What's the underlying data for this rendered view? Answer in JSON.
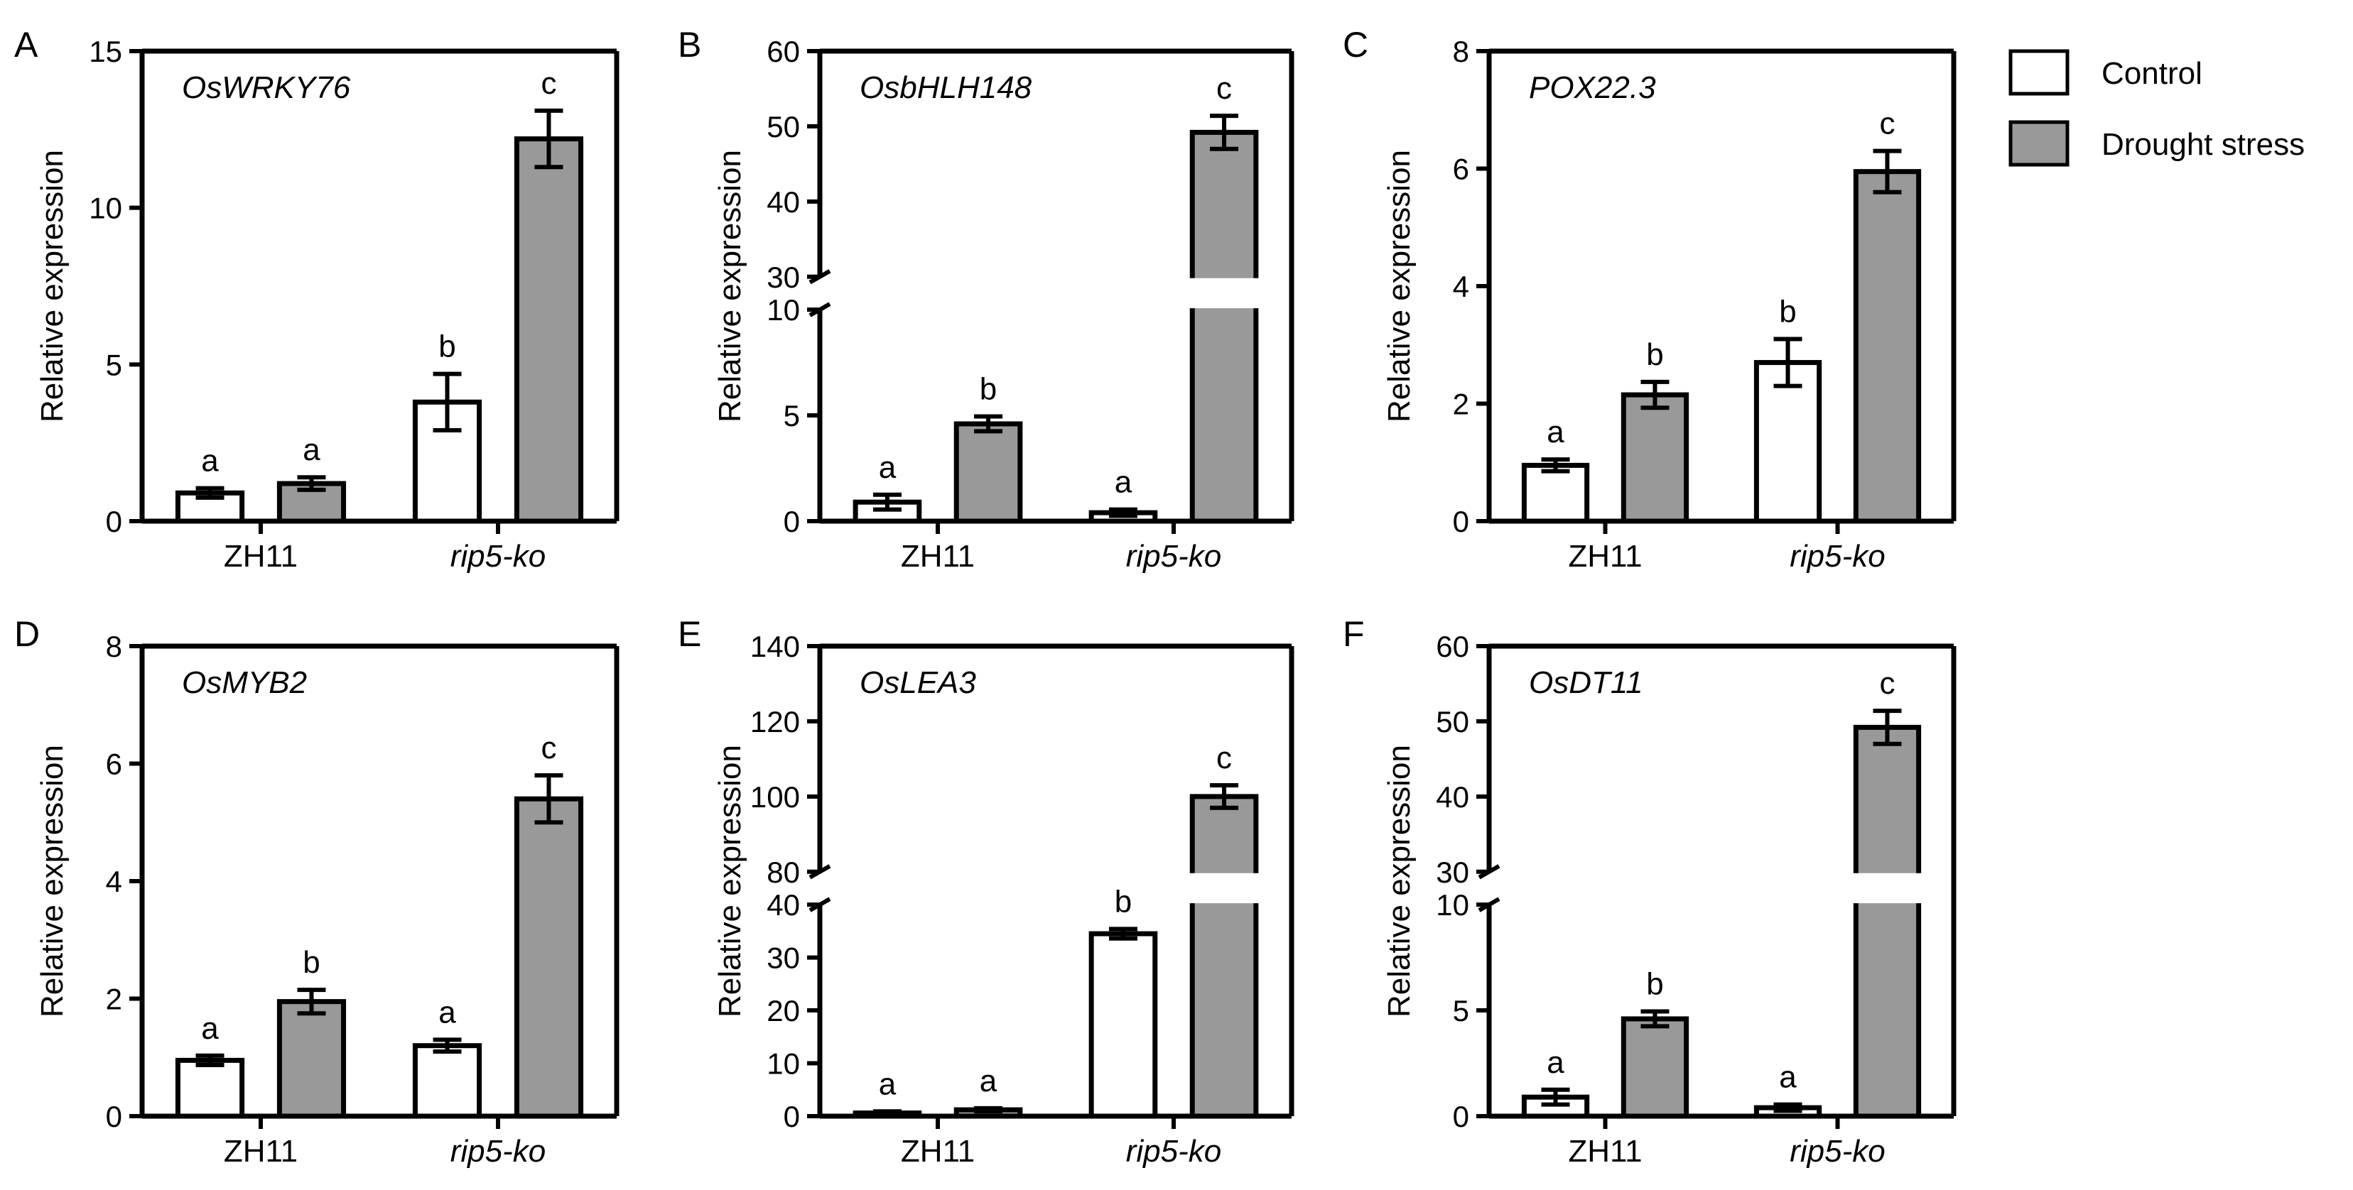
{
  "legend": {
    "items": [
      {
        "label": "Control",
        "color": "#ffffff"
      },
      {
        "label": "Drought stress",
        "color": "#999999"
      }
    ],
    "placement": "top-right"
  },
  "colors": {
    "control": "#ffffff",
    "drought": "#999999",
    "stroke": "#000000"
  },
  "chart_data": [
    {
      "panel": "A",
      "type": "bar",
      "title": "OsWRKY76",
      "ylabel": "Relative expression",
      "categories": [
        "ZH11",
        "rip5-ko"
      ],
      "category_italic": [
        false,
        true
      ],
      "ylim": [
        0,
        15
      ],
      "yticks": [
        0,
        5,
        10,
        15
      ],
      "series": [
        {
          "name": "Control",
          "values": [
            0.9,
            3.8
          ],
          "errors": [
            0.15,
            0.9
          ]
        },
        {
          "name": "Drought stress",
          "values": [
            1.2,
            12.2
          ],
          "errors": [
            0.2,
            0.9
          ]
        }
      ],
      "letters": [
        [
          "a",
          "b"
        ],
        [
          "a",
          "c"
        ]
      ]
    },
    {
      "panel": "B",
      "type": "bar",
      "title": "OsbHLH148",
      "ylabel": "Relative expression",
      "categories": [
        "ZH11",
        "rip5-ko"
      ],
      "category_italic": [
        false,
        true
      ],
      "ylim": [
        0,
        60
      ],
      "yticks": [
        0,
        5,
        10,
        30,
        40,
        50,
        60
      ],
      "axis_break": {
        "low": [
          0,
          10
        ],
        "high": [
          30,
          60
        ]
      },
      "series": [
        {
          "name": "Control",
          "values": [
            0.9,
            0.4
          ],
          "errors": [
            0.35,
            0.15
          ]
        },
        {
          "name": "Drought stress",
          "values": [
            4.6,
            49.2
          ],
          "errors": [
            0.35,
            2.2
          ]
        }
      ],
      "letters": [
        [
          "a",
          "a"
        ],
        [
          "b",
          "c"
        ]
      ]
    },
    {
      "panel": "C",
      "type": "bar",
      "title": "POX22.3",
      "ylabel": "Relative expression",
      "categories": [
        "ZH11",
        "rip5-ko"
      ],
      "category_italic": [
        false,
        true
      ],
      "ylim": [
        0,
        8
      ],
      "yticks": [
        0,
        2,
        4,
        6,
        8
      ],
      "series": [
        {
          "name": "Control",
          "values": [
            0.95,
            2.7
          ],
          "errors": [
            0.1,
            0.4
          ]
        },
        {
          "name": "Drought stress",
          "values": [
            2.15,
            5.95
          ],
          "errors": [
            0.22,
            0.35
          ]
        }
      ],
      "letters": [
        [
          "a",
          "b"
        ],
        [
          "b",
          "c"
        ]
      ]
    },
    {
      "panel": "D",
      "type": "bar",
      "title": "OsMYB2",
      "ylabel": "Relative expression",
      "categories": [
        "ZH11",
        "rip5-ko"
      ],
      "category_italic": [
        false,
        true
      ],
      "ylim": [
        0,
        8
      ],
      "yticks": [
        0,
        2,
        4,
        6,
        8
      ],
      "series": [
        {
          "name": "Control",
          "values": [
            0.95,
            1.2
          ],
          "errors": [
            0.08,
            0.1
          ]
        },
        {
          "name": "Drought stress",
          "values": [
            1.95,
            5.4
          ],
          "errors": [
            0.2,
            0.4
          ]
        }
      ],
      "letters": [
        [
          "a",
          "a"
        ],
        [
          "b",
          "c"
        ]
      ]
    },
    {
      "panel": "E",
      "type": "bar",
      "title": "OsLEA3",
      "ylabel": "Relative expression",
      "categories": [
        "ZH11",
        "rip5-ko"
      ],
      "category_italic": [
        false,
        true
      ],
      "ylim": [
        0,
        140
      ],
      "yticks": [
        0,
        10,
        20,
        30,
        40,
        80,
        100,
        120,
        140
      ],
      "axis_break": {
        "low": [
          0,
          40
        ],
        "high": [
          80,
          140
        ]
      },
      "series": [
        {
          "name": "Control",
          "values": [
            0.6,
            34.5
          ],
          "errors": [
            0.3,
            0.9
          ]
        },
        {
          "name": "Drought stress",
          "values": [
            1.2,
            100
          ],
          "errors": [
            0.3,
            3
          ]
        }
      ],
      "letters": [
        [
          "a",
          "b"
        ],
        [
          "a",
          "c"
        ]
      ]
    },
    {
      "panel": "F",
      "type": "bar",
      "title": "OsDT11",
      "ylabel": "Relative expression",
      "categories": [
        "ZH11",
        "rip5-ko"
      ],
      "category_italic": [
        false,
        true
      ],
      "ylim": [
        0,
        60
      ],
      "yticks": [
        0,
        5,
        10,
        30,
        40,
        50,
        60
      ],
      "axis_break": {
        "low": [
          0,
          10
        ],
        "high": [
          30,
          60
        ]
      },
      "series": [
        {
          "name": "Control",
          "values": [
            0.9,
            0.4
          ],
          "errors": [
            0.35,
            0.15
          ]
        },
        {
          "name": "Drought stress",
          "values": [
            4.6,
            49.2
          ],
          "errors": [
            0.35,
            2.2
          ]
        }
      ],
      "letters": [
        [
          "a",
          "a"
        ],
        [
          "b",
          "c"
        ]
      ]
    }
  ]
}
